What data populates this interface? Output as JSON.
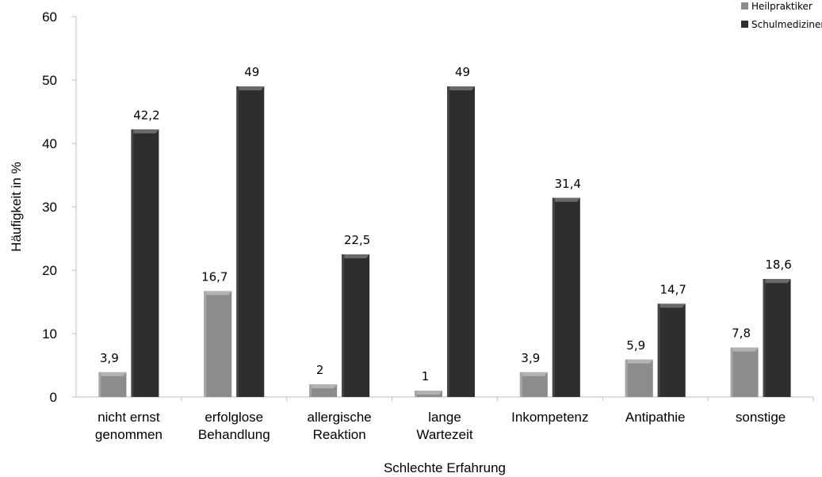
{
  "chart_data": {
    "type": "bar",
    "title": "",
    "xlabel": "Schlechte Erfahrung",
    "ylabel": "Häufigkeit in %",
    "ylim": [
      0,
      60
    ],
    "yticks": [
      "0",
      "10",
      "20",
      "30",
      "40",
      "50",
      "60"
    ],
    "grid": false,
    "legend_position": "top-right",
    "categories": [
      [
        "nicht ernst",
        "genommen"
      ],
      [
        "erfolglose",
        "Behandlung"
      ],
      [
        "allergische",
        "Reaktion"
      ],
      [
        "lange",
        "Wartezeit"
      ],
      [
        "Inkompetenz"
      ],
      [
        "Antipathie"
      ],
      [
        "sonstige"
      ]
    ],
    "series": [
      {
        "name": "Heilpraktiker",
        "color": "#8c8c8c",
        "values": [
          3.9,
          16.7,
          2,
          1,
          3.9,
          5.9,
          7.8
        ],
        "labels": [
          "3,9",
          "16,7",
          "2",
          "1",
          "3,9",
          "5,9",
          "7,8"
        ]
      },
      {
        "name": "Schulmediziner",
        "color": "#2e2e2e",
        "values": [
          42.2,
          49,
          22.5,
          49,
          31.4,
          14.7,
          18.6
        ],
        "labels": [
          "42,2",
          "49",
          "22,5",
          "49",
          "31,4",
          "14,7",
          "18,6"
        ]
      }
    ]
  }
}
